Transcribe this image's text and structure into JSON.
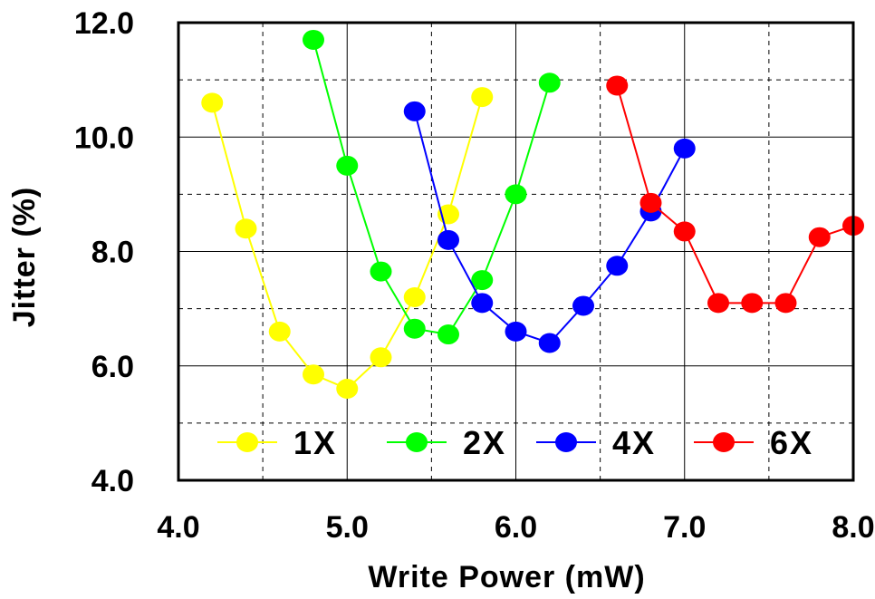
{
  "chart_data": {
    "type": "line",
    "xlabel": "Write Power (mW)",
    "ylabel": "Jitter (%)",
    "xlim": [
      4.0,
      8.0
    ],
    "ylim": [
      4.0,
      12.0
    ],
    "x_ticks": [
      "4.0",
      "5.0",
      "6.0",
      "7.0",
      "8.0"
    ],
    "y_ticks": [
      "4.0",
      "6.0",
      "8.0",
      "10.0",
      "12.0"
    ],
    "grid": true,
    "legend_position": "bottom-inside",
    "series": [
      {
        "name": "1X",
        "color": "#ffff00",
        "x": [
          4.2,
          4.4,
          4.6,
          4.8,
          5.0,
          5.2,
          5.4,
          5.6,
          5.8
        ],
        "y": [
          10.6,
          8.4,
          6.6,
          5.85,
          5.6,
          6.15,
          7.2,
          8.65,
          10.7
        ]
      },
      {
        "name": "2X",
        "color": "#00ff00",
        "x": [
          4.8,
          5.0,
          5.2,
          5.4,
          5.6,
          5.8,
          6.0,
          6.2
        ],
        "y": [
          11.7,
          9.5,
          7.65,
          6.65,
          6.55,
          7.5,
          9.0,
          10.95
        ]
      },
      {
        "name": "4X",
        "color": "#0000ff",
        "x": [
          5.4,
          5.6,
          5.8,
          6.0,
          6.2,
          6.4,
          6.6,
          6.8,
          7.0
        ],
        "y": [
          10.45,
          8.2,
          7.1,
          6.6,
          6.4,
          7.05,
          7.75,
          8.7,
          9.8
        ]
      },
      {
        "name": "6X",
        "color": "#ff0000",
        "x": [
          6.6,
          6.8,
          7.0,
          7.2,
          7.4,
          7.6,
          7.8,
          8.0
        ],
        "y": [
          10.9,
          8.85,
          8.35,
          7.1,
          7.1,
          7.1,
          8.25,
          8.45
        ]
      }
    ]
  }
}
